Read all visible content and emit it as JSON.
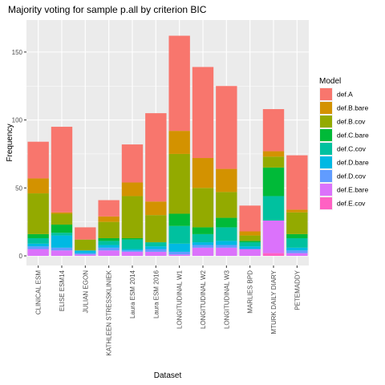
{
  "chart_data": {
    "type": "bar",
    "stacked": true,
    "title": "Majority voting for sample p.all by criterion BIC",
    "xlabel": "Dataset",
    "ylabel": "Frequency",
    "ylim": [
      0,
      170
    ],
    "yticks": [
      0,
      50,
      100,
      150
    ],
    "grid": true,
    "legend_title": "Model",
    "legend_position": "right",
    "categories": [
      "CLINICAL ESM",
      "ELISE ESM14",
      "JULIAN EGON",
      "KATHLEEN STRESSKLINIEK",
      "Laura ESM 2014",
      "Laura ESM 2016",
      "LONGITUDINAL W1",
      "LONGITUDINAL W2",
      "LONGITUDINAL W3",
      "MARLIES BPD",
      "MTURK DAILY DIARY",
      "PETEMADDY"
    ],
    "series": [
      {
        "name": "def.E.cov",
        "color": "#FF61C3",
        "values": [
          0,
          0,
          0,
          0,
          0,
          0,
          0,
          0,
          0,
          0,
          2,
          0
        ]
      },
      {
        "name": "def.E.bare",
        "color": "#DB72FB",
        "values": [
          5,
          4,
          1,
          4,
          3,
          3,
          1,
          6,
          6,
          5,
          24,
          2
        ]
      },
      {
        "name": "def.D.cov",
        "color": "#619CFF",
        "values": [
          2,
          2,
          1,
          2,
          1,
          2,
          2,
          2,
          2,
          0,
          0,
          2
        ]
      },
      {
        "name": "def.D.bare",
        "color": "#00B9E3",
        "values": [
          2,
          9,
          2,
          2,
          1,
          2,
          6,
          2,
          3,
          2,
          0,
          2
        ]
      },
      {
        "name": "def.C.cov",
        "color": "#00C19F",
        "values": [
          4,
          2,
          0,
          3,
          7,
          3,
          13,
          6,
          10,
          3,
          18,
          7
        ]
      },
      {
        "name": "def.C.bare",
        "color": "#00BA38",
        "values": [
          3,
          6,
          0,
          2,
          1,
          0,
          9,
          5,
          7,
          1,
          21,
          3
        ]
      },
      {
        "name": "def.B.cov",
        "color": "#93AA00",
        "values": [
          30,
          8,
          8,
          12,
          31,
          20,
          44,
          29,
          19,
          4,
          8,
          16
        ]
      },
      {
        "name": "def.B.bare",
        "color": "#D39200",
        "values": [
          11,
          1,
          0,
          4,
          10,
          10,
          17,
          22,
          17,
          3,
          4,
          2
        ]
      },
      {
        "name": "def.A",
        "color": "#F8766D",
        "values": [
          27,
          63,
          9,
          12,
          28,
          65,
          70,
          67,
          61,
          19,
          31,
          40
        ]
      }
    ],
    "legend_order": [
      "def.A",
      "def.B.bare",
      "def.B.cov",
      "def.C.bare",
      "def.C.cov",
      "def.D.bare",
      "def.D.cov",
      "def.E.bare",
      "def.E.cov"
    ]
  }
}
